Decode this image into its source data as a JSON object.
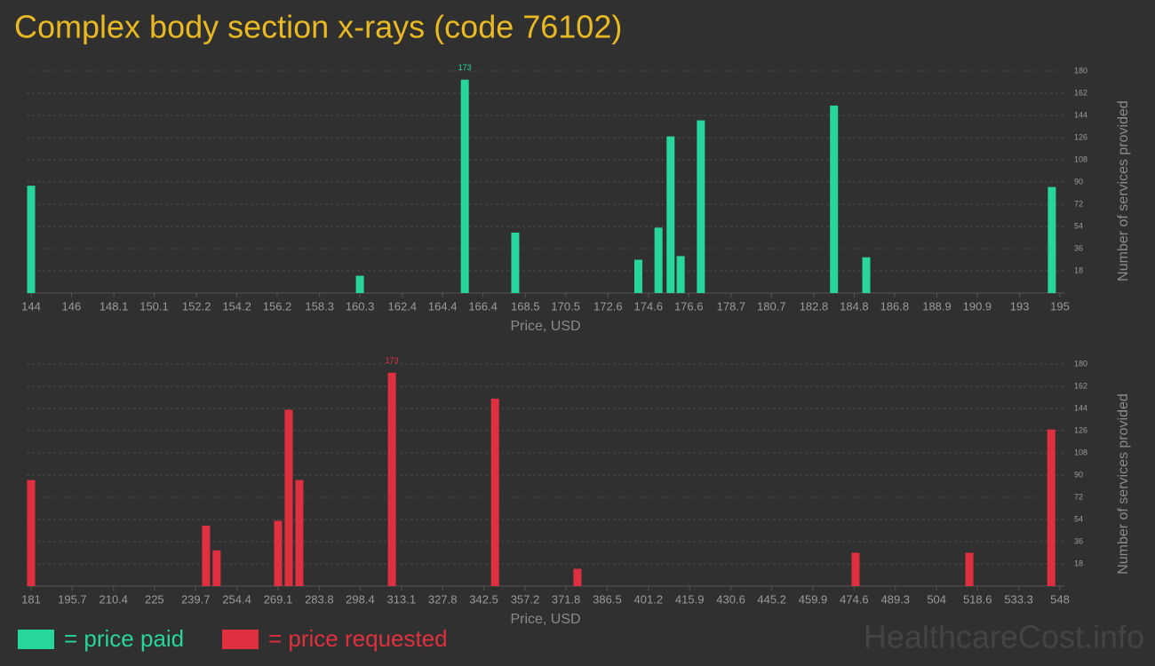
{
  "chart_data": [
    {
      "type": "bar",
      "title": "Complex body section x-rays (code 76102)",
      "x": [
        144,
        160.3,
        165.5,
        168.0,
        174.1,
        175.1,
        175.7,
        176.2,
        177.2,
        183.8,
        185.4,
        194.6
      ],
      "series": [
        {
          "name": "= price paid",
          "color": "#27d69c",
          "values": [
            87,
            14,
            173,
            49,
            27,
            53,
            127,
            30,
            140,
            152,
            29,
            86
          ],
          "value_labels": [
            null,
            null,
            "173",
            null,
            null,
            null,
            null,
            null,
            null,
            null,
            null,
            null
          ]
        }
      ],
      "xlabel": "Price, USD",
      "ylabel": "Number of services provided",
      "xlim": [
        144,
        195
      ],
      "xticks": [
        144,
        146,
        148.1,
        150.1,
        152.2,
        154.2,
        156.2,
        158.3,
        160.3,
        162.4,
        164.4,
        166.4,
        168.5,
        170.5,
        172.6,
        174.6,
        176.6,
        178.7,
        180.7,
        182.8,
        184.8,
        186.8,
        188.9,
        190.9,
        193,
        195
      ],
      "ylim": [
        0,
        180
      ],
      "yticks": [
        18,
        36,
        54,
        72,
        90,
        108,
        126,
        144,
        162,
        180
      ],
      "grid": true
    },
    {
      "type": "bar",
      "x": [
        181,
        243.4,
        247.2,
        269.1,
        272.9,
        276.7,
        309.7,
        346.5,
        375.9,
        475.1,
        515.7,
        544.9
      ],
      "series": [
        {
          "name": "= price requested",
          "color": "#e0303f",
          "values": [
            86,
            49,
            29,
            53,
            143,
            86,
            173,
            152,
            14,
            27,
            27,
            127
          ],
          "value_labels": [
            null,
            null,
            null,
            null,
            null,
            null,
            "173",
            null,
            null,
            null,
            null,
            null
          ]
        }
      ],
      "xlabel": "Price, USD",
      "ylabel": "Number of services provided",
      "xlim": [
        181,
        548
      ],
      "xticks": [
        181,
        195.7,
        210.4,
        225,
        239.7,
        254.4,
        269.1,
        283.8,
        298.4,
        313.1,
        327.8,
        342.5,
        357.2,
        371.8,
        386.5,
        401.2,
        415.9,
        430.6,
        445.2,
        459.9,
        474.6,
        489.3,
        504,
        518.6,
        533.3,
        548
      ],
      "ylim": [
        0,
        180
      ],
      "yticks": [
        18,
        36,
        54,
        72,
        90,
        108,
        126,
        144,
        162,
        180
      ],
      "grid": true
    }
  ],
  "watermark": "HealthcareCost.info"
}
